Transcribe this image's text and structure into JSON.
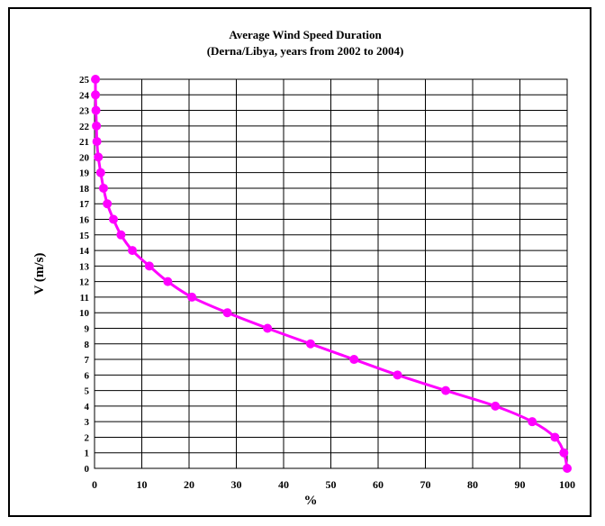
{
  "chart_data": {
    "type": "line",
    "title": "Average Wind Speed Duration",
    "subtitle": "(Derna/Libya, years from 2002 to 2004)",
    "xlabel": "%",
    "ylabel": "V (m/s)",
    "xlim": [
      0,
      100
    ],
    "ylim": [
      0,
      25
    ],
    "xticks": [
      "0",
      "10",
      "20",
      "30",
      "40",
      "50",
      "60",
      "70",
      "80",
      "90",
      "100"
    ],
    "yticks": [
      "0",
      "1",
      "2",
      "3",
      "4",
      "5",
      "6",
      "7",
      "8",
      "9",
      "10",
      "11",
      "12",
      "13",
      "14",
      "15",
      "16",
      "17",
      "18",
      "19",
      "20",
      "21",
      "22",
      "23",
      "24",
      "25"
    ],
    "grid": true,
    "legend": "none",
    "series": [
      {
        "color": "#ff00ff",
        "points": [
          [
            100,
            0
          ],
          [
            99.3,
            1
          ],
          [
            97.4,
            2
          ],
          [
            92.6,
            3
          ],
          [
            84.8,
            4
          ],
          [
            74.3,
            5
          ],
          [
            64.1,
            6
          ],
          [
            54.9,
            7
          ],
          [
            45.7,
            8
          ],
          [
            36.6,
            9
          ],
          [
            28.1,
            10
          ],
          [
            20.6,
            11
          ],
          [
            15.5,
            12
          ],
          [
            11.6,
            13
          ],
          [
            8.0,
            14
          ],
          [
            5.6,
            15
          ],
          [
            4.0,
            16
          ],
          [
            2.7,
            17
          ],
          [
            1.9,
            18
          ],
          [
            1.3,
            19
          ],
          [
            0.8,
            20
          ],
          [
            0.5,
            21
          ],
          [
            0.4,
            22
          ],
          [
            0.3,
            23
          ],
          [
            0.2,
            24
          ],
          [
            0.2,
            25
          ]
        ]
      }
    ]
  }
}
